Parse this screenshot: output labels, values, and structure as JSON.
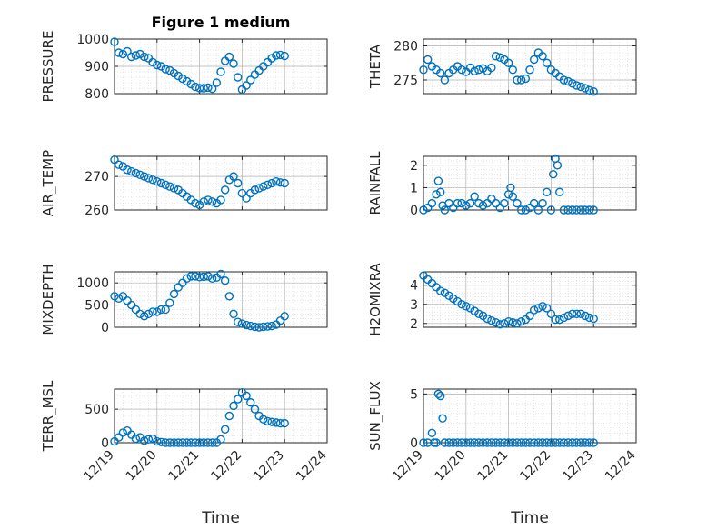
{
  "figure_title": "Figure 1 medium",
  "colors": {
    "marker": "#0072BD",
    "axes": "#262626",
    "grid": "#b0b0b0"
  },
  "chart_data": [
    {
      "type": "scatter",
      "name": "pressure",
      "ylabel": "PRESSURE",
      "title": "Figure 1 medium",
      "ylim": [
        800,
        1000
      ],
      "yticks": [
        800,
        900,
        1000
      ],
      "ytick_labels": [
        "800",
        "900",
        "1000"
      ],
      "xlim": [
        0,
        5
      ],
      "xticks": [
        0,
        1,
        2,
        3,
        4,
        5
      ],
      "xtick_labels": [
        "12/19",
        "12/20",
        "12/21",
        "12/22",
        "12/23",
        "12/24"
      ],
      "xlabel": "",
      "x": [
        0.0,
        0.1,
        0.2,
        0.3,
        0.4,
        0.5,
        0.6,
        0.7,
        0.8,
        0.9,
        1.0,
        1.1,
        1.2,
        1.3,
        1.4,
        1.5,
        1.6,
        1.7,
        1.8,
        1.9,
        2.0,
        2.1,
        2.2,
        2.3,
        2.4,
        2.5,
        2.6,
        2.7,
        2.8,
        2.9,
        3.0,
        3.1,
        3.2,
        3.3,
        3.4,
        3.5,
        3.6,
        3.7,
        3.8,
        3.9,
        4.0
      ],
      "y": [
        990,
        950,
        945,
        955,
        935,
        940,
        945,
        935,
        930,
        915,
        905,
        900,
        890,
        885,
        875,
        865,
        855,
        845,
        835,
        825,
        820,
        820,
        822,
        818,
        840,
        880,
        920,
        935,
        910,
        860,
        815,
        830,
        850,
        870,
        885,
        900,
        915,
        930,
        940,
        942,
        938
      ]
    },
    {
      "type": "scatter",
      "name": "theta",
      "ylabel": "THETA",
      "ylim": [
        273,
        281
      ],
      "yticks": [
        275,
        280
      ],
      "ytick_labels": [
        "275",
        "280"
      ],
      "xlim": [
        0,
        5
      ],
      "xticks": [
        0,
        1,
        2,
        3,
        4,
        5
      ],
      "xtick_labels": [
        "12/19",
        "12/20",
        "12/21",
        "12/22",
        "12/23",
        "12/24"
      ],
      "xlabel": "",
      "x": [
        0.0,
        0.1,
        0.2,
        0.3,
        0.4,
        0.5,
        0.6,
        0.7,
        0.8,
        0.9,
        1.0,
        1.1,
        1.2,
        1.3,
        1.4,
        1.5,
        1.6,
        1.7,
        1.8,
        1.9,
        2.0,
        2.1,
        2.2,
        2.3,
        2.4,
        2.5,
        2.6,
        2.7,
        2.8,
        2.9,
        3.0,
        3.1,
        3.2,
        3.3,
        3.4,
        3.5,
        3.6,
        3.7,
        3.8,
        3.9,
        4.0
      ],
      "y": [
        276.5,
        278,
        277,
        276.5,
        276,
        275,
        276,
        276.5,
        277,
        276.5,
        276.2,
        276.8,
        276.3,
        276.5,
        276.7,
        276.3,
        276.8,
        278.5,
        278.3,
        278,
        277.5,
        276.5,
        275,
        275,
        275.2,
        276.5,
        278,
        279,
        278.5,
        277.5,
        276.5,
        276,
        275.5,
        275,
        274.8,
        274.5,
        274.2,
        274,
        273.8,
        273.5,
        273.3
      ]
    },
    {
      "type": "scatter",
      "name": "air_temp",
      "ylabel": "AIR_TEMP",
      "ylim": [
        260,
        276
      ],
      "yticks": [
        260,
        270
      ],
      "ytick_labels": [
        "260",
        "270"
      ],
      "xlim": [
        0,
        5
      ],
      "xticks": [
        0,
        1,
        2,
        3,
        4,
        5
      ],
      "xtick_labels": [
        "12/19",
        "12/20",
        "12/21",
        "12/22",
        "12/23",
        "12/24"
      ],
      "xlabel": "",
      "x": [
        0.0,
        0.1,
        0.2,
        0.3,
        0.4,
        0.5,
        0.6,
        0.7,
        0.8,
        0.9,
        1.0,
        1.1,
        1.2,
        1.3,
        1.4,
        1.5,
        1.6,
        1.7,
        1.8,
        1.9,
        2.0,
        2.1,
        2.2,
        2.3,
        2.4,
        2.5,
        2.6,
        2.7,
        2.8,
        2.9,
        3.0,
        3.1,
        3.2,
        3.3,
        3.4,
        3.5,
        3.6,
        3.7,
        3.8,
        3.9,
        4.0
      ],
      "y": [
        275,
        273.5,
        273,
        272,
        271.5,
        271,
        270.5,
        270,
        269.5,
        269,
        268.5,
        268,
        267.5,
        267,
        266.5,
        266,
        265,
        264,
        263,
        262,
        261.5,
        262.5,
        263,
        262.5,
        262,
        263,
        266,
        269,
        270,
        268,
        265,
        263.5,
        265,
        266,
        266.5,
        267,
        267.5,
        268,
        268.5,
        268.2,
        268
      ]
    },
    {
      "type": "scatter",
      "name": "rainfall",
      "ylabel": "RAINFALL",
      "ylim": [
        0,
        2.4
      ],
      "yticks": [
        0,
        1,
        2
      ],
      "ytick_labels": [
        "0",
        "1",
        "2"
      ],
      "xlim": [
        0,
        5
      ],
      "xticks": [
        0,
        1,
        2,
        3,
        4,
        5
      ],
      "xtick_labels": [
        "12/19",
        "12/20",
        "12/21",
        "12/22",
        "12/23",
        "12/24"
      ],
      "xlabel": "",
      "x": [
        0.0,
        0.1,
        0.2,
        0.3,
        0.35,
        0.4,
        0.45,
        0.5,
        0.6,
        0.7,
        0.8,
        0.9,
        1.0,
        1.1,
        1.2,
        1.3,
        1.4,
        1.5,
        1.6,
        1.7,
        1.8,
        1.9,
        2.0,
        2.05,
        2.1,
        2.2,
        2.3,
        2.4,
        2.5,
        2.6,
        2.7,
        2.8,
        2.9,
        3.0,
        3.05,
        3.1,
        3.15,
        3.2,
        3.3,
        3.4,
        3.5,
        3.6,
        3.7,
        3.8,
        3.9,
        4.0
      ],
      "y": [
        0,
        0.1,
        0.3,
        0.7,
        1.3,
        0.8,
        0.2,
        0,
        0.3,
        0.1,
        0.3,
        0.3,
        0.2,
        0.3,
        0.6,
        0.3,
        0.2,
        0.3,
        0.5,
        0.3,
        0.1,
        0.3,
        0.7,
        1.0,
        0.6,
        0.3,
        0,
        0,
        0.1,
        0.3,
        0,
        0.3,
        0.8,
        0,
        1.6,
        2.3,
        2.0,
        0.8,
        0,
        0,
        0,
        0,
        0,
        0,
        0,
        0
      ]
    },
    {
      "type": "scatter",
      "name": "mixdepth",
      "ylabel": "MIXDEPTH",
      "ylim": [
        0,
        1250
      ],
      "yticks": [
        0,
        500,
        1000
      ],
      "ytick_labels": [
        "0",
        "500",
        "1000"
      ],
      "xlim": [
        0,
        5
      ],
      "xticks": [
        0,
        1,
        2,
        3,
        4,
        5
      ],
      "xtick_labels": [
        "12/19",
        "12/20",
        "12/21",
        "12/22",
        "12/23",
        "12/24"
      ],
      "xlabel": "",
      "x": [
        0.0,
        0.1,
        0.2,
        0.3,
        0.4,
        0.5,
        0.6,
        0.7,
        0.8,
        0.9,
        1.0,
        1.1,
        1.2,
        1.3,
        1.4,
        1.5,
        1.6,
        1.7,
        1.8,
        1.9,
        2.0,
        2.1,
        2.2,
        2.3,
        2.4,
        2.5,
        2.6,
        2.7,
        2.8,
        2.9,
        3.0,
        3.1,
        3.2,
        3.3,
        3.4,
        3.5,
        3.6,
        3.7,
        3.8,
        3.9,
        4.0
      ],
      "y": [
        700,
        650,
        700,
        600,
        500,
        400,
        300,
        250,
        300,
        350,
        350,
        400,
        400,
        550,
        750,
        900,
        1000,
        1100,
        1150,
        1150,
        1130,
        1140,
        1150,
        1100,
        1120,
        1200,
        1050,
        700,
        300,
        120,
        80,
        50,
        30,
        10,
        0,
        10,
        20,
        30,
        60,
        150,
        250
      ]
    },
    {
      "type": "scatter",
      "name": "h2omixra",
      "ylabel": "H2OMIXRA",
      "ylim": [
        1.8,
        4.7
      ],
      "yticks": [
        2,
        3,
        4
      ],
      "ytick_labels": [
        "2",
        "3",
        "4"
      ],
      "xlim": [
        0,
        5
      ],
      "xticks": [
        0,
        1,
        2,
        3,
        4,
        5
      ],
      "xtick_labels": [
        "12/19",
        "12/20",
        "12/21",
        "12/22",
        "12/23",
        "12/24"
      ],
      "xlabel": "",
      "x": [
        0.0,
        0.1,
        0.2,
        0.3,
        0.4,
        0.5,
        0.6,
        0.7,
        0.8,
        0.9,
        1.0,
        1.1,
        1.2,
        1.3,
        1.4,
        1.5,
        1.6,
        1.7,
        1.8,
        1.9,
        2.0,
        2.1,
        2.2,
        2.3,
        2.4,
        2.5,
        2.6,
        2.7,
        2.8,
        2.9,
        3.0,
        3.1,
        3.2,
        3.3,
        3.4,
        3.5,
        3.6,
        3.7,
        3.8,
        3.9,
        4.0
      ],
      "y": [
        4.5,
        4.3,
        4.1,
        3.9,
        3.7,
        3.6,
        3.45,
        3.3,
        3.15,
        3.0,
        2.9,
        2.8,
        2.65,
        2.5,
        2.4,
        2.25,
        2.15,
        2.05,
        1.95,
        2.0,
        2.1,
        2.05,
        2.0,
        2.1,
        2.2,
        2.4,
        2.7,
        2.8,
        2.9,
        2.8,
        2.5,
        2.2,
        2.2,
        2.3,
        2.4,
        2.5,
        2.5,
        2.5,
        2.4,
        2.3,
        2.25
      ]
    },
    {
      "type": "scatter",
      "name": "terr_msl",
      "ylabel": "TERR_MSL",
      "ylim": [
        0,
        800
      ],
      "yticks": [
        0,
        500
      ],
      "ytick_labels": [
        "0",
        "500"
      ],
      "xlim": [
        0,
        5
      ],
      "xticks": [
        0,
        1,
        2,
        3,
        4,
        5
      ],
      "xtick_labels": [
        "12/19",
        "12/20",
        "12/21",
        "12/22",
        "12/23",
        "12/24"
      ],
      "xlabel": "Time",
      "x": [
        0.0,
        0.1,
        0.2,
        0.3,
        0.4,
        0.5,
        0.6,
        0.7,
        0.8,
        0.9,
        1.0,
        1.1,
        1.2,
        1.3,
        1.4,
        1.5,
        1.6,
        1.7,
        1.8,
        1.9,
        2.0,
        2.1,
        2.2,
        2.3,
        2.4,
        2.5,
        2.6,
        2.7,
        2.8,
        2.9,
        3.0,
        3.1,
        3.2,
        3.3,
        3.4,
        3.5,
        3.6,
        3.7,
        3.8,
        3.9,
        4.0
      ],
      "y": [
        20,
        80,
        150,
        180,
        120,
        60,
        80,
        30,
        50,
        60,
        20,
        10,
        0,
        0,
        0,
        0,
        0,
        0,
        0,
        0,
        0,
        0,
        0,
        0,
        0,
        50,
        200,
        400,
        550,
        650,
        750,
        700,
        600,
        500,
        400,
        350,
        320,
        310,
        300,
        290,
        290
      ]
    },
    {
      "type": "scatter",
      "name": "sun_flux",
      "ylabel": "SUN_FLUX",
      "ylim": [
        0,
        5.5
      ],
      "yticks": [
        0,
        5
      ],
      "ytick_labels": [
        "0",
        "5"
      ],
      "xlim": [
        0,
        5
      ],
      "xticks": [
        0,
        1,
        2,
        3,
        4,
        5
      ],
      "xtick_labels": [
        "12/19",
        "12/20",
        "12/21",
        "12/22",
        "12/23",
        "12/24"
      ],
      "xlabel": "Time",
      "x": [
        0.0,
        0.1,
        0.2,
        0.25,
        0.3,
        0.35,
        0.4,
        0.45,
        0.5,
        0.6,
        0.7,
        0.8,
        0.9,
        1.0,
        1.1,
        1.2,
        1.3,
        1.4,
        1.5,
        1.6,
        1.7,
        1.8,
        1.9,
        2.0,
        2.1,
        2.2,
        2.3,
        2.4,
        2.5,
        2.6,
        2.7,
        2.8,
        2.9,
        3.0,
        3.1,
        3.2,
        3.3,
        3.4,
        3.5,
        3.6,
        3.7,
        3.8,
        3.9,
        4.0
      ],
      "y": [
        0,
        0,
        1.0,
        0,
        0,
        5.0,
        4.8,
        2.5,
        0,
        0,
        0,
        0,
        0,
        0,
        0,
        0,
        0,
        0,
        0,
        0,
        0,
        0,
        0,
        0,
        0,
        0,
        0,
        0,
        0,
        0,
        0,
        0,
        0,
        0,
        0,
        0,
        0,
        0,
        0,
        0,
        0,
        0,
        0,
        0
      ]
    }
  ]
}
